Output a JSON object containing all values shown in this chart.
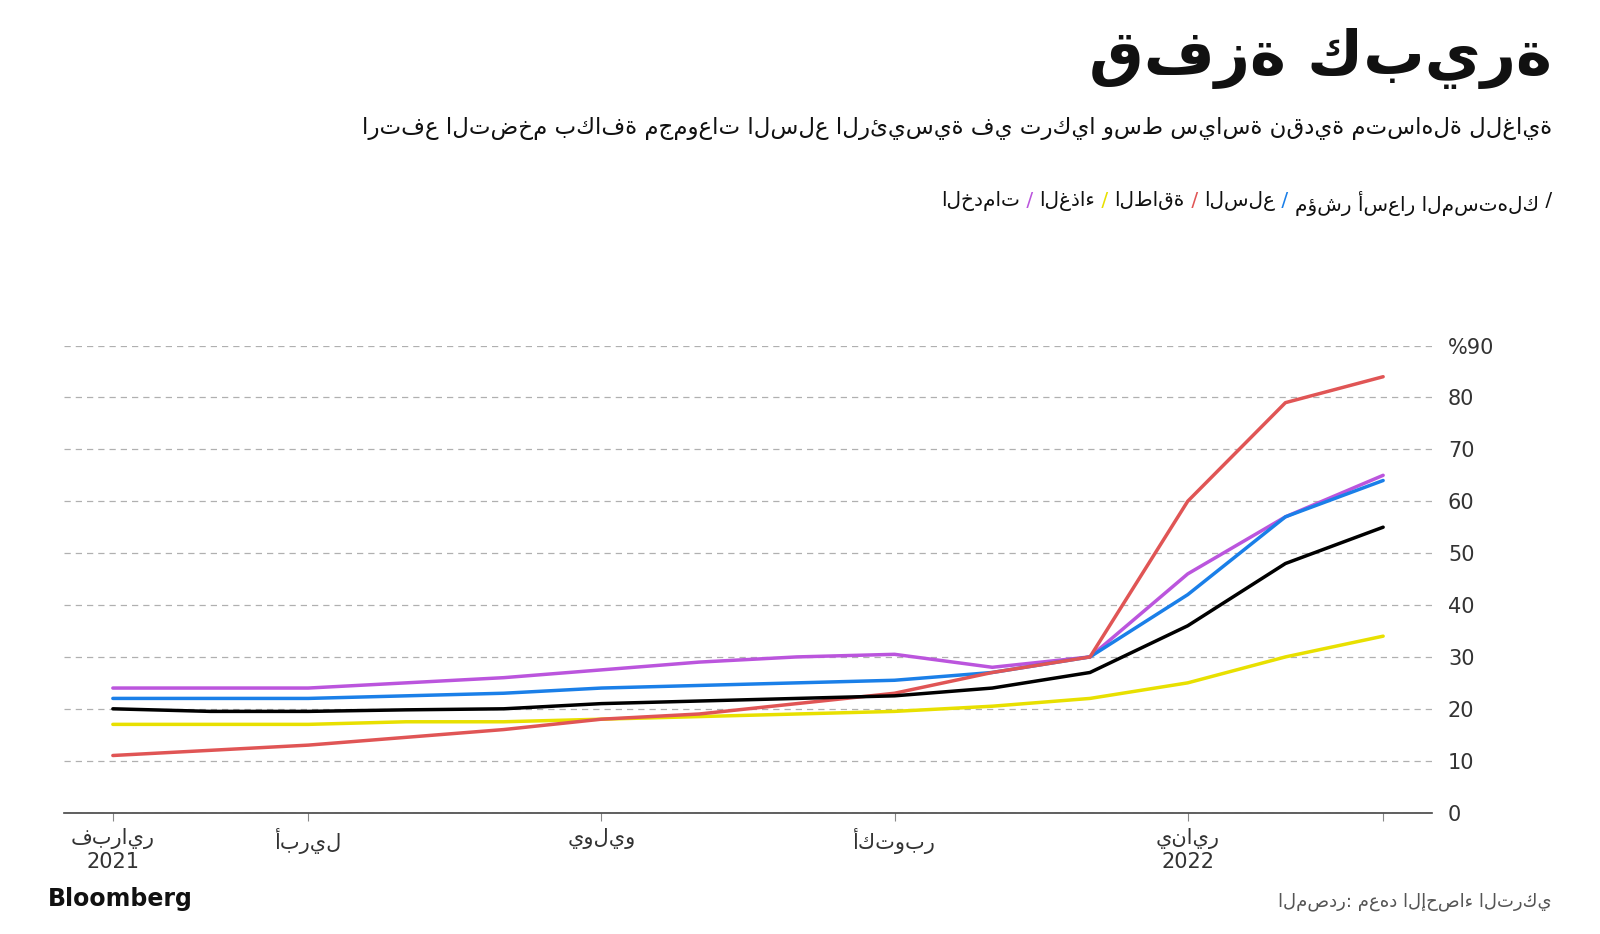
{
  "title": "قفزة كبيرة",
  "subtitle": "ارتفع التضخم بكافة مجموعات السلع الرئيسية في تركيا وسط سياسة نقدية متساهلة للغاية",
  "legend_cpi": "مؤشر أسعار المستهلك",
  "legend_goods": "السلع",
  "legend_energy": "الطاقة",
  "legend_food": "الغذاء",
  "legend_services": "الخدمات",
  "source_label": "المصدر: معهد الإحصاء التركي",
  "bloomberg_label": "Bloomberg",
  "ylim": [
    0,
    90
  ],
  "yticks": [
    0,
    10,
    20,
    30,
    40,
    50,
    60,
    70,
    80,
    90
  ],
  "xtick_positions": [
    0,
    2,
    5,
    8,
    11,
    13
  ],
  "xtick_line1": [
    "فبراير",
    "أبريل",
    "يوليو",
    "أكتوبر",
    "يناير",
    ""
  ],
  "xtick_line2": [
    "2021",
    "",
    "",
    "",
    "2022",
    ""
  ],
  "cpi_color": "#000000",
  "goods_color": "#1a7fe8",
  "energy_color": "#e05555",
  "food_color": "#e8e000",
  "services_color": "#bb55dd",
  "bg_color": "#ffffff",
  "grid_color": "#b0b0b0",
  "cpi_data": [
    20.0,
    19.5,
    19.5,
    19.8,
    20.0,
    21.0,
    21.5,
    22.0,
    22.5,
    24.0,
    27.0,
    36.0,
    48.0,
    55.0
  ],
  "goods_data": [
    22.0,
    22.0,
    22.0,
    22.5,
    23.0,
    24.0,
    24.5,
    25.0,
    25.5,
    27.0,
    30.0,
    42.0,
    57.0,
    64.0
  ],
  "energy_data": [
    11.0,
    12.0,
    13.0,
    14.5,
    16.0,
    18.0,
    19.0,
    21.0,
    23.0,
    27.0,
    30.0,
    60.0,
    79.0,
    84.0
  ],
  "food_data": [
    17.0,
    17.0,
    17.0,
    17.5,
    17.5,
    18.0,
    18.5,
    19.0,
    19.5,
    20.5,
    22.0,
    25.0,
    30.0,
    34.0
  ],
  "services_data": [
    24.0,
    24.0,
    24.0,
    25.0,
    26.0,
    27.5,
    29.0,
    30.0,
    30.5,
    28.0,
    30.0,
    46.0,
    57.0,
    65.0
  ],
  "n_points": 14,
  "line_width": 2.5
}
